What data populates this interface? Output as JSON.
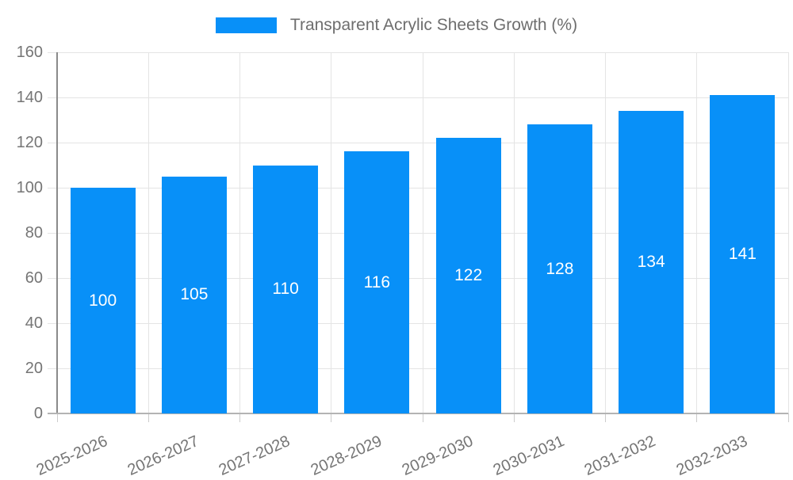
{
  "chart_data": {
    "type": "bar",
    "title": "Transparent Acrylic Sheets Growth (%)",
    "legend": {
      "label": "Transparent Acrylic Sheets Growth (%)",
      "position": "top-center"
    },
    "categories": [
      "2025-2026",
      "2026-2027",
      "2027-2028",
      "2028-2029",
      "2029-2030",
      "2030-2031",
      "2031-2032",
      "2032-2033"
    ],
    "values": [
      100,
      105,
      110,
      116,
      122,
      128,
      134,
      141
    ],
    "xlabel": "",
    "ylabel": "",
    "ylim": [
      0,
      160
    ],
    "yticks": [
      0,
      20,
      40,
      60,
      80,
      100,
      120,
      140,
      160
    ],
    "grid": true,
    "value_labels_position": "inside-center",
    "x_label_rotation_deg": -24,
    "colors": {
      "bar": "#0890F8",
      "grid": "#e4e4e4",
      "y_axis": "#8a8a8a",
      "x_axis": "#b3b3b3",
      "tick": "#cccccc",
      "axis_text": "#757575",
      "value_text": "#ffffff",
      "background": "#ffffff"
    }
  }
}
